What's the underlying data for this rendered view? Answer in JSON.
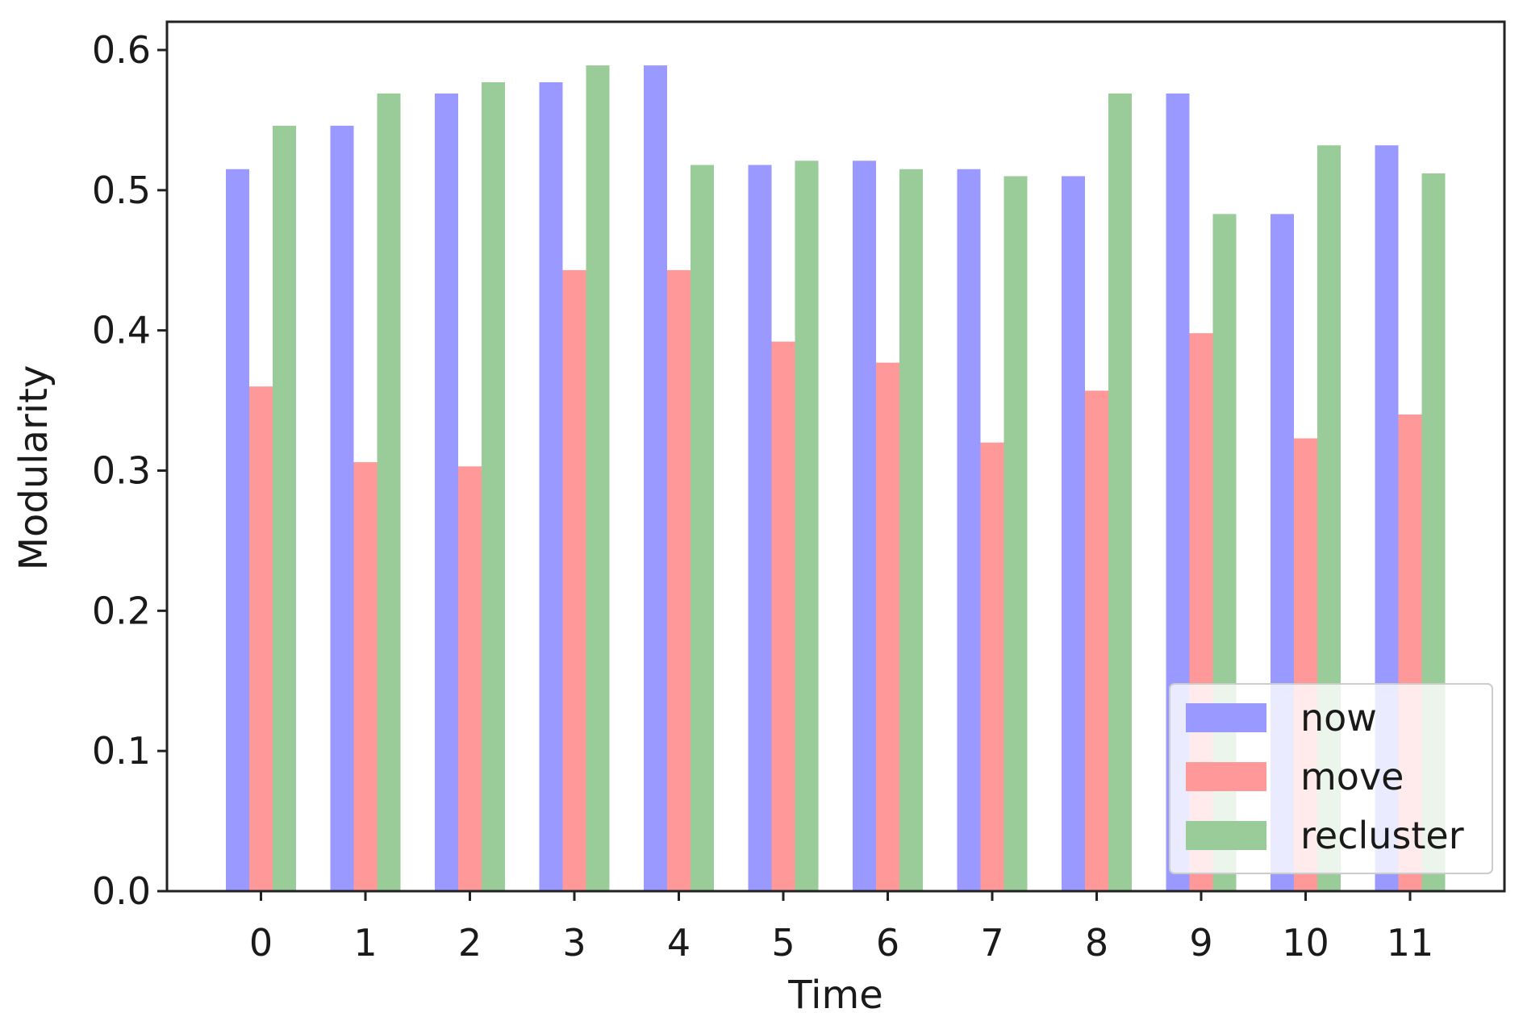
{
  "chart_data": {
    "type": "bar",
    "title": "",
    "xlabel": "Time",
    "ylabel": "Modularity",
    "categories": [
      "0",
      "1",
      "2",
      "3",
      "4",
      "5",
      "6",
      "7",
      "8",
      "9",
      "10",
      "11"
    ],
    "ylim": [
      0,
      0.62
    ],
    "yticks": [
      "0.0",
      "0.1",
      "0.2",
      "0.3",
      "0.4",
      "0.5",
      "0.6"
    ],
    "grid": false,
    "legend_position": "bottom-right",
    "series": [
      {
        "name": "now",
        "color": "#9999ff",
        "values": [
          0.515,
          0.546,
          0.569,
          0.577,
          0.589,
          0.518,
          0.521,
          0.515,
          0.51,
          0.569,
          0.483,
          0.532
        ]
      },
      {
        "name": "move",
        "color": "#ff9999",
        "values": [
          0.36,
          0.306,
          0.303,
          0.443,
          0.443,
          0.392,
          0.377,
          0.32,
          0.357,
          0.398,
          0.323,
          0.34
        ]
      },
      {
        "name": "recluster",
        "color": "#99cc99",
        "values": [
          0.546,
          0.569,
          0.577,
          0.589,
          0.518,
          0.521,
          0.515,
          0.51,
          0.569,
          0.483,
          0.532,
          0.512
        ]
      }
    ]
  }
}
